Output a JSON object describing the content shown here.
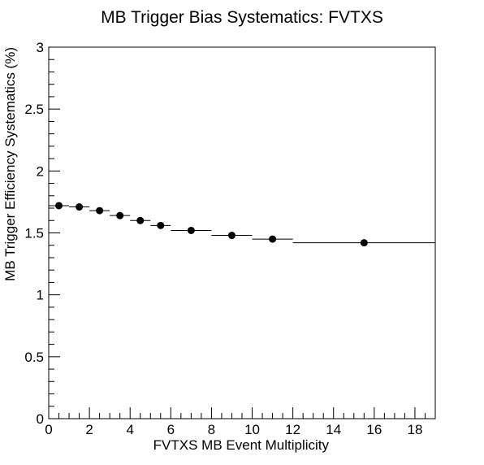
{
  "chart_data": {
    "type": "scatter",
    "title": "MB Trigger Bias Systematics: FVTXS",
    "xlabel": "FVTXS MB Event Multiplicity",
    "ylabel": "MB Trigger Efficiency Systematics (%)",
    "xlim": [
      0,
      19
    ],
    "ylim": [
      0,
      3
    ],
    "x_ticks": [
      "0",
      "2",
      "4",
      "6",
      "8",
      "10",
      "12",
      "14",
      "16",
      "18"
    ],
    "y_ticks": [
      "0",
      "0.5",
      "1",
      "1.5",
      "2",
      "2.5",
      "3"
    ],
    "grid": false,
    "legend": "none",
    "series": [
      {
        "points": [
          {
            "x": 0.5,
            "y": 1.72,
            "xlow": 0,
            "xhigh": 1
          },
          {
            "x": 1.5,
            "y": 1.71,
            "xlow": 1,
            "xhigh": 2
          },
          {
            "x": 2.5,
            "y": 1.68,
            "xlow": 2,
            "xhigh": 3
          },
          {
            "x": 3.5,
            "y": 1.64,
            "xlow": 3,
            "xhigh": 4
          },
          {
            "x": 4.5,
            "y": 1.6,
            "xlow": 4,
            "xhigh": 5
          },
          {
            "x": 5.5,
            "y": 1.56,
            "xlow": 5,
            "xhigh": 6
          },
          {
            "x": 7,
            "y": 1.52,
            "xlow": 6,
            "xhigh": 8
          },
          {
            "x": 9,
            "y": 1.48,
            "xlow": 8,
            "xhigh": 10
          },
          {
            "x": 11,
            "y": 1.45,
            "xlow": 10,
            "xhigh": 12
          },
          {
            "x": 15.5,
            "y": 1.42,
            "xlow": 12,
            "xhigh": 19
          }
        ]
      }
    ],
    "colors": {
      "marker": "#000000",
      "axis": "#000000"
    }
  }
}
